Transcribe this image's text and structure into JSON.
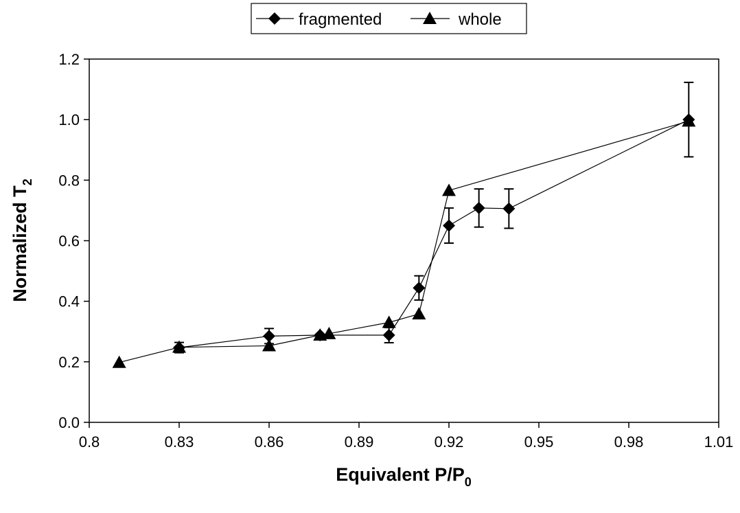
{
  "chart_data": {
    "type": "scatter",
    "title": "",
    "xlabel": "Equivalent P/P",
    "xlabel_sub": "0",
    "ylabel": "Normalized T",
    "ylabel_sub": "2",
    "xlim": [
      0.8,
      1.01
    ],
    "ylim": [
      0.0,
      1.2
    ],
    "xticks": [
      "0.8",
      "0.83",
      "0.86",
      "0.89",
      "0.92",
      "0.95",
      "0.98",
      "1.01"
    ],
    "yticks": [
      "0.0",
      "0.2",
      "0.4",
      "0.6",
      "0.8",
      "1.0",
      "1.2"
    ],
    "grid": false,
    "legend": "top-center",
    "series": [
      {
        "name": "fragmented",
        "marker": "diamond",
        "color": "#000000",
        "x": [
          0.83,
          0.86,
          0.877,
          0.9,
          0.91,
          0.92,
          0.93,
          0.94,
          1.0
        ],
        "y": [
          0.247,
          0.285,
          0.288,
          0.288,
          0.444,
          0.65,
          0.708,
          0.706,
          1.0
        ],
        "error": [
          0.017,
          0.025,
          0.0,
          0.025,
          0.04,
          0.058,
          0.063,
          0.065,
          0.123
        ]
      },
      {
        "name": "whole",
        "marker": "triangle",
        "color": "#000000",
        "x": [
          0.81,
          0.83,
          0.86,
          0.877,
          0.88,
          0.9,
          0.91,
          0.92,
          1.0
        ],
        "y": [
          0.198,
          0.248,
          0.253,
          0.288,
          0.293,
          0.33,
          0.358,
          0.766,
          0.995
        ]
      }
    ]
  }
}
